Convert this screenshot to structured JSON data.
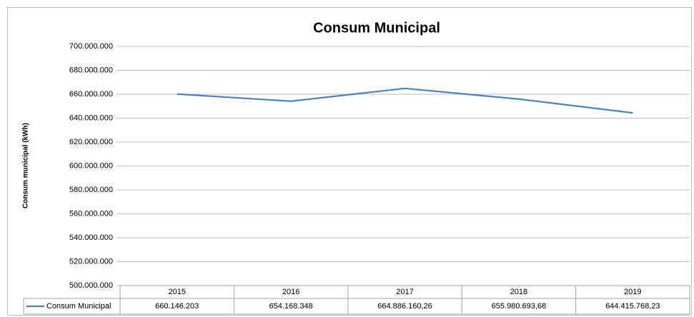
{
  "chart_data": {
    "type": "line",
    "title": "Consum Municipal",
    "y_label": "Consum municipal (kWh)",
    "categories": [
      "2015",
      "2016",
      "2017",
      "2018",
      "2019"
    ],
    "series": [
      {
        "name": "Consum Municipal",
        "color": "#4f81bd",
        "values": [
          660146203,
          654168348,
          664886160.26,
          655980693.68,
          644415768.23
        ],
        "value_labels": [
          "660.146.203",
          "654.168.348",
          "664.886.160,26",
          "655.980.693,68",
          "644.415.768,23"
        ]
      }
    ],
    "ylim": [
      500000000,
      700000000
    ],
    "yticks": [
      {
        "value": 500000000,
        "label": "500.000.000"
      },
      {
        "value": 520000000,
        "label": "520.000.000"
      },
      {
        "value": 540000000,
        "label": "540.000.000"
      },
      {
        "value": 560000000,
        "label": "560.000.000"
      },
      {
        "value": 580000000,
        "label": "580.000.000"
      },
      {
        "value": 600000000,
        "label": "600.000.000"
      },
      {
        "value": 620000000,
        "label": "620.000.000"
      },
      {
        "value": 640000000,
        "label": "640.000.000"
      },
      {
        "value": 660000000,
        "label": "660.000.000"
      },
      {
        "value": 680000000,
        "label": "680.000.000"
      },
      {
        "value": 700000000,
        "label": "700.000.000"
      }
    ],
    "grid": true,
    "data_table": true
  }
}
